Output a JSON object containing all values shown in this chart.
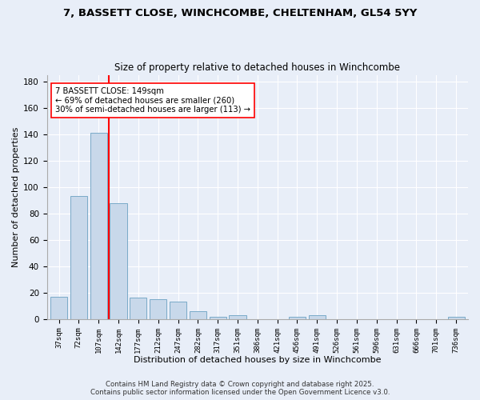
{
  "title_line1": "7, BASSETT CLOSE, WINCHCOMBE, CHELTENHAM, GL54 5YY",
  "title_line2": "Size of property relative to detached houses in Winchcombe",
  "xlabel": "Distribution of detached houses by size in Winchcombe",
  "ylabel": "Number of detached properties",
  "categories": [
    "37sqm",
    "72sqm",
    "107sqm",
    "142sqm",
    "177sqm",
    "212sqm",
    "247sqm",
    "282sqm",
    "317sqm",
    "351sqm",
    "386sqm",
    "421sqm",
    "456sqm",
    "491sqm",
    "526sqm",
    "561sqm",
    "596sqm",
    "631sqm",
    "666sqm",
    "701sqm",
    "736sqm"
  ],
  "values": [
    17,
    93,
    141,
    88,
    16,
    15,
    13,
    6,
    2,
    3,
    0,
    0,
    2,
    3,
    0,
    0,
    0,
    0,
    0,
    0,
    2
  ],
  "bar_color": "#c8d8ea",
  "bar_edge_color": "#7aaac8",
  "vline_x_index": 2.5,
  "vline_color": "red",
  "annotation_text": "7 BASSETT CLOSE: 149sqm\n← 69% of detached houses are smaller (260)\n30% of semi-detached houses are larger (113) →",
  "annotation_box_color": "white",
  "annotation_box_edge_color": "red",
  "ylim": [
    0,
    185
  ],
  "yticks": [
    0,
    20,
    40,
    60,
    80,
    100,
    120,
    140,
    160,
    180
  ],
  "footer_line1": "Contains HM Land Registry data © Crown copyright and database right 2025.",
  "footer_line2": "Contains public sector information licensed under the Open Government Licence v3.0.",
  "bg_color": "#e8eef8",
  "plot_bg_color": "#e8eef8"
}
